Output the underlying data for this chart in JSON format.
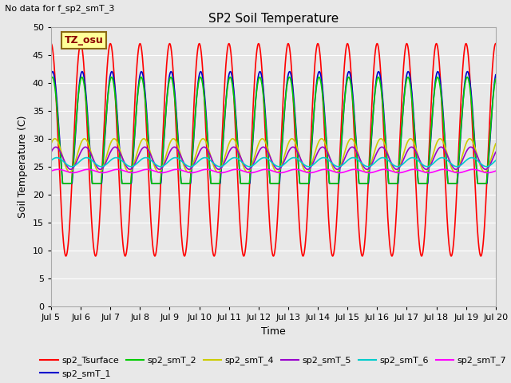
{
  "title": "SP2 Soil Temperature",
  "subtitle": "No data for f_sp2_smT_3",
  "xlabel": "Time",
  "ylabel": "Soil Temperature (C)",
  "ylim": [
    0,
    50
  ],
  "yticks": [
    0,
    5,
    10,
    15,
    20,
    25,
    30,
    35,
    40,
    45,
    50
  ],
  "xtick_labels": [
    "Jul 5",
    "Jul 6",
    "Jul 7",
    "Jul 8",
    "Jul 9",
    "Jul 10",
    "Jul 11",
    "Jul 12",
    "Jul 13",
    "Jul 14",
    "Jul 15",
    "Jul 16",
    "Jul 17",
    "Jul 18",
    "Jul 19",
    "Jul 20"
  ],
  "tz_label": "TZ_osu",
  "background_color": "#e8e8e8",
  "plot_bg_color": "#e8e8e8",
  "series": {
    "sp2_Tsurface": {
      "color": "#ff0000",
      "linewidth": 1.2
    },
    "sp2_smT_1": {
      "color": "#0000cc",
      "linewidth": 1.2
    },
    "sp2_smT_2": {
      "color": "#00cc00",
      "linewidth": 1.2
    },
    "sp2_smT_4": {
      "color": "#cccc00",
      "linewidth": 1.2
    },
    "sp2_smT_5": {
      "color": "#9900cc",
      "linewidth": 1.2
    },
    "sp2_smT_6": {
      "color": "#00cccc",
      "linewidth": 1.2
    },
    "sp2_smT_7": {
      "color": "#ff00ff",
      "linewidth": 1.2
    }
  },
  "legend_items_row1": [
    {
      "label": "sp2_Tsurface",
      "color": "#ff0000"
    },
    {
      "label": "sp2_smT_1",
      "color": "#0000cc"
    },
    {
      "label": "sp2_smT_2",
      "color": "#00cc00"
    },
    {
      "label": "sp2_smT_4",
      "color": "#cccc00"
    },
    {
      "label": "sp2_smT_5",
      "color": "#9900cc"
    },
    {
      "label": "sp2_smT_6",
      "color": "#00cccc"
    }
  ],
  "legend_items_row2": [
    {
      "label": "sp2_smT_7",
      "color": "#ff00ff"
    }
  ]
}
